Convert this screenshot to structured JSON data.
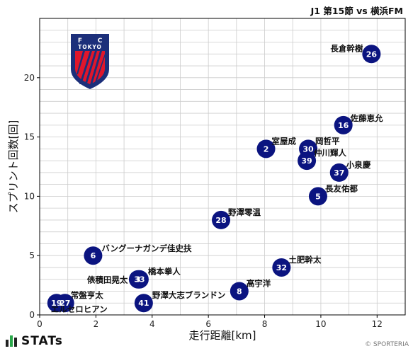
{
  "title": "J1 第15節 vs 横浜FM",
  "footer": {
    "brand": "STATs",
    "credit": "© SPORTERIA"
  },
  "logo": {
    "letters_top": [
      "F",
      "C"
    ],
    "word": "TOKYO"
  },
  "colors": {
    "point": "#0b1480",
    "grid": "#cccccc",
    "axis": "#000000",
    "logo_blue": "#1c2f7a",
    "logo_red": "#e0162b"
  },
  "chart_data": {
    "type": "scatter",
    "xlabel": "走行距離[km]",
    "ylabel": "スプリント回数[回]",
    "xlim": [
      0,
      13
    ],
    "ylim": [
      0,
      25
    ],
    "xticks": [
      0,
      2,
      4,
      6,
      8,
      10,
      12
    ],
    "yticks": [
      0,
      5,
      10,
      15,
      20
    ],
    "grid": true,
    "points": [
      {
        "number": "26",
        "name": "長倉幹樹",
        "x": 11.8,
        "y": 22
      },
      {
        "number": "16",
        "name": "佐藤恵允",
        "x": 10.8,
        "y": 16
      },
      {
        "number": "2",
        "name": "室屋成",
        "x": 8.05,
        "y": 14
      },
      {
        "number": "30",
        "name": "岡哲平",
        "x": 9.55,
        "y": 14
      },
      {
        "number": "39",
        "name": "仲川輝人",
        "x": 9.5,
        "y": 13
      },
      {
        "number": "37",
        "name": "小泉慶",
        "x": 10.65,
        "y": 12
      },
      {
        "number": "5",
        "name": "長友佑都",
        "x": 9.9,
        "y": 10
      },
      {
        "number": "28",
        "name": "野澤零温",
        "x": 6.45,
        "y": 8
      },
      {
        "number": "6",
        "name": "バングーナガンデ佳史扶",
        "x": 1.9,
        "y": 5
      },
      {
        "number": "32",
        "name": "土肥幹太",
        "x": 8.6,
        "y": 4
      },
      {
        "number": "33",
        "name": "橋本拳人",
        "x": 3.55,
        "y": 3
      },
      {
        "number": "3",
        "name": "俵積田晃太",
        "x": 3.5,
        "y": 3
      },
      {
        "number": "8",
        "name": "高宇洋",
        "x": 7.1,
        "y": 2
      },
      {
        "number": "41",
        "name": "野澤大志ブランドン",
        "x": 3.7,
        "y": 1
      },
      {
        "number": "19",
        "name": "常盤亨太",
        "x": 0.6,
        "y": 1
      },
      {
        "number": "27",
        "name": "エルセロヒアン",
        "x": 0.9,
        "y": 1
      }
    ]
  }
}
